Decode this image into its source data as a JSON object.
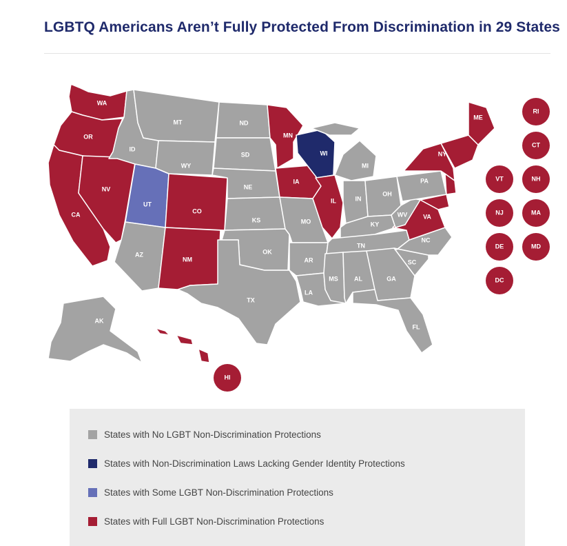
{
  "title": "LGBTQ Americans Aren’t Fully Protected From Discrimination in 29 States",
  "colors": {
    "none": "#a3a3a3",
    "partial_no_gender": "#1f2a6b",
    "some": "#6670b8",
    "full": "#a51d34"
  },
  "states": [
    {
      "abbr": "WA",
      "category": "full"
    },
    {
      "abbr": "OR",
      "category": "full"
    },
    {
      "abbr": "CA",
      "category": "full"
    },
    {
      "abbr": "NV",
      "category": "full"
    },
    {
      "abbr": "ID",
      "category": "none"
    },
    {
      "abbr": "MT",
      "category": "none"
    },
    {
      "abbr": "WY",
      "category": "none"
    },
    {
      "abbr": "UT",
      "category": "some"
    },
    {
      "abbr": "AZ",
      "category": "none"
    },
    {
      "abbr": "CO",
      "category": "full"
    },
    {
      "abbr": "NM",
      "category": "full"
    },
    {
      "abbr": "ND",
      "category": "none"
    },
    {
      "abbr": "SD",
      "category": "none"
    },
    {
      "abbr": "NE",
      "category": "none"
    },
    {
      "abbr": "KS",
      "category": "none"
    },
    {
      "abbr": "OK",
      "category": "none"
    },
    {
      "abbr": "TX",
      "category": "none"
    },
    {
      "abbr": "MN",
      "category": "full"
    },
    {
      "abbr": "IA",
      "category": "full"
    },
    {
      "abbr": "MO",
      "category": "none"
    },
    {
      "abbr": "AR",
      "category": "none"
    },
    {
      "abbr": "LA",
      "category": "none"
    },
    {
      "abbr": "WI",
      "category": "partial_no_gender"
    },
    {
      "abbr": "IL",
      "category": "full"
    },
    {
      "abbr": "MI",
      "category": "none"
    },
    {
      "abbr": "IN",
      "category": "none"
    },
    {
      "abbr": "OH",
      "category": "none"
    },
    {
      "abbr": "KY",
      "category": "none"
    },
    {
      "abbr": "TN",
      "category": "none"
    },
    {
      "abbr": "MS",
      "category": "none"
    },
    {
      "abbr": "AL",
      "category": "none"
    },
    {
      "abbr": "GA",
      "category": "none"
    },
    {
      "abbr": "FL",
      "category": "none"
    },
    {
      "abbr": "SC",
      "category": "none"
    },
    {
      "abbr": "NC",
      "category": "none"
    },
    {
      "abbr": "VA",
      "category": "full"
    },
    {
      "abbr": "WV",
      "category": "none"
    },
    {
      "abbr": "PA",
      "category": "none"
    },
    {
      "abbr": "NY",
      "category": "full"
    },
    {
      "abbr": "ME",
      "category": "full"
    },
    {
      "abbr": "AK",
      "category": "none"
    },
    {
      "abbr": "HI",
      "category": "full"
    }
  ],
  "small_states": [
    {
      "abbr": "RI",
      "category": "full"
    },
    {
      "abbr": "CT",
      "category": "full"
    },
    {
      "abbr": "VT",
      "category": "full"
    },
    {
      "abbr": "NH",
      "category": "full"
    },
    {
      "abbr": "NJ",
      "category": "full"
    },
    {
      "abbr": "MA",
      "category": "full"
    },
    {
      "abbr": "DE",
      "category": "full"
    },
    {
      "abbr": "MD",
      "category": "full"
    },
    {
      "abbr": "DC",
      "category": "full"
    }
  ],
  "legend": [
    {
      "label": "States with No LGBT Non-Discrimination Protections",
      "category": "none"
    },
    {
      "label": "States with Non-Discrimination Laws Lacking Gender Identity Protections",
      "category": "partial_no_gender"
    },
    {
      "label": "States with Some LGBT Non-Discrimination Protections",
      "category": "some"
    },
    {
      "label": "States with Full LGBT Non-Discrimination Protections",
      "category": "full"
    }
  ]
}
